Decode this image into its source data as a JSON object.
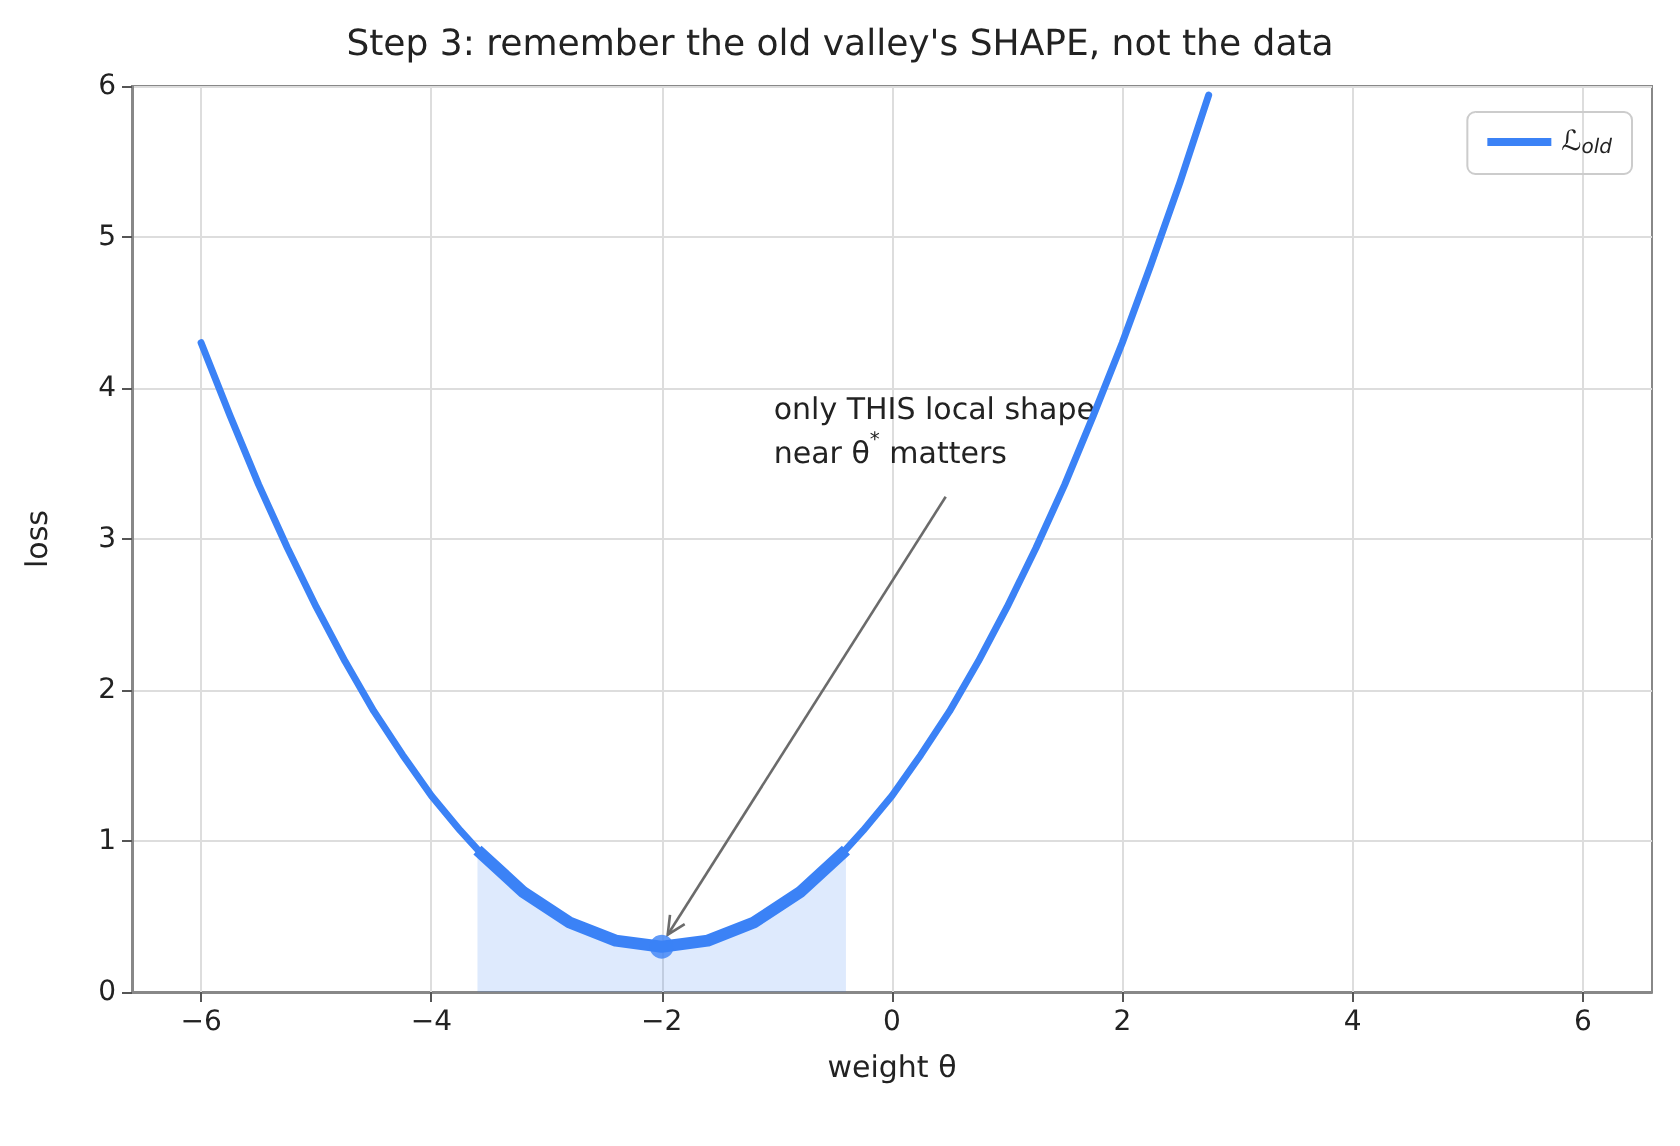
{
  "chart_data": {
    "type": "line",
    "title": "Step 3: remember the old valley's SHAPE, not the data",
    "xlabel": "weight θ",
    "ylabel": "loss",
    "xlim": [
      -6.6,
      6.6
    ],
    "ylim": [
      0,
      6
    ],
    "xticks": [
      {
        "value": -6,
        "label": "−6"
      },
      {
        "value": -4,
        "label": "−4"
      },
      {
        "value": -2,
        "label": "−2"
      },
      0,
      2,
      4,
      6
    ],
    "yticks": [
      0,
      1,
      2,
      3,
      4,
      5,
      6
    ],
    "grid": true,
    "legend": "top right",
    "marker": "none",
    "series": [
      {
        "name": "ℒ$_{old}$",
        "color": "#3b82f6",
        "x": [
          -6,
          -5.75,
          -5.5,
          -5.25,
          -5,
          -4.75,
          -4.5,
          -4.25,
          -4,
          -3.75,
          -3.5,
          -3.25,
          -3,
          -2.75,
          -2.5,
          -2.25,
          -2,
          -1.75,
          -1.5,
          -1.25,
          -1,
          -0.75,
          -0.5,
          -0.25,
          0,
          0.25,
          0.5,
          0.75,
          1,
          1.25,
          1.5,
          1.75,
          2,
          2.25,
          2.5,
          2.75
        ],
        "values": [
          4.3,
          3.82,
          3.36,
          2.94,
          2.55,
          2.19,
          1.86,
          1.57,
          1.3,
          1.07,
          0.86,
          0.69,
          0.55,
          0.44,
          0.36,
          0.32,
          0.3,
          0.32,
          0.36,
          0.44,
          0.55,
          0.69,
          0.86,
          1.07,
          1.3,
          1.57,
          1.86,
          2.19,
          2.55,
          2.94,
          3.36,
          3.82,
          4.3,
          4.82,
          5.36,
          5.94
        ]
      },
      {
        "type": "area",
        "color": "#3b82f6",
        "x": [
          -3.6,
          -3.2,
          -2.8,
          -2.4,
          -2,
          -1.6,
          -1.2,
          -0.8,
          -0.4
        ],
        "values": [
          0.94,
          0.66,
          0.46,
          0.34,
          0.3,
          0.34,
          0.46,
          0.66,
          0.94
        ]
      },
      {
        "type": "scatter",
        "marker": "circle",
        "color": "#3b82f6",
        "x": [
          -2
        ],
        "values": [
          0.3
        ]
      }
    ],
    "annotations": [
      {
        "text": "only THIS local shape\nnear θ$^{*}$ matters",
        "x": -2,
        "y": 0.3
      }
    ]
  }
}
